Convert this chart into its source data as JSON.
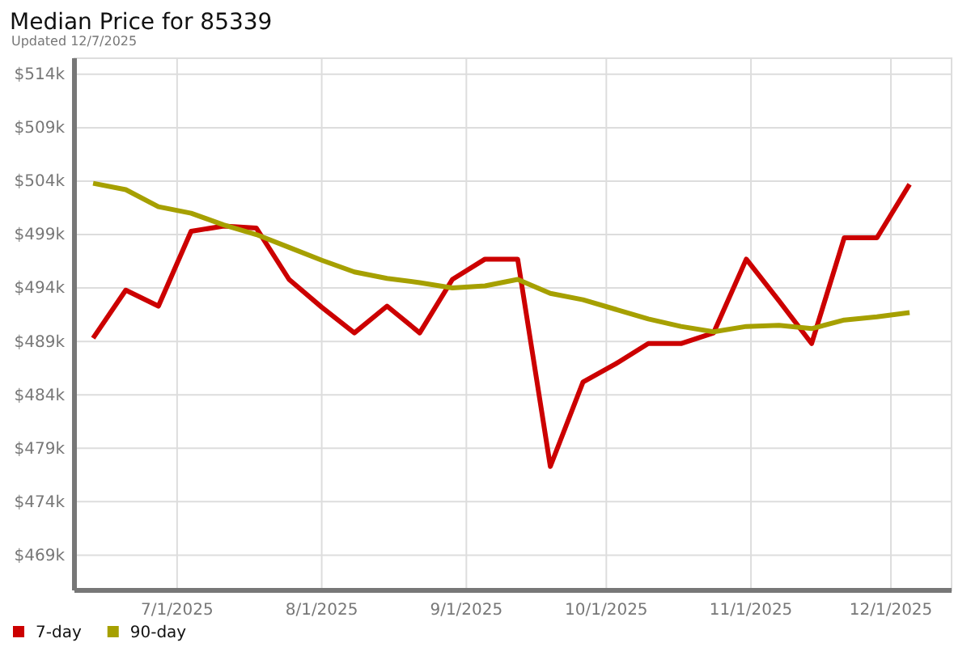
{
  "chart_data": {
    "type": "line",
    "title": "Median Price for 85339",
    "subtitle": "Updated 12/7/2025",
    "x": [
      "2025-06-13",
      "2025-06-20",
      "2025-06-27",
      "2025-07-04",
      "2025-07-11",
      "2025-07-18",
      "2025-07-25",
      "2025-08-01",
      "2025-08-08",
      "2025-08-15",
      "2025-08-22",
      "2025-08-29",
      "2025-09-05",
      "2025-09-12",
      "2025-09-19",
      "2025-09-26",
      "2025-10-03",
      "2025-10-10",
      "2025-10-17",
      "2025-10-24",
      "2025-10-31",
      "2025-11-07",
      "2025-11-14",
      "2025-11-21",
      "2025-11-28",
      "2025-12-05"
    ],
    "series": [
      {
        "name": "7-day",
        "color": "#cc0000",
        "values": [
          489.3,
          493.8,
          492.3,
          499.3,
          499.8,
          499.6,
          494.8,
          492.2,
          489.8,
          492.3,
          489.8,
          494.8,
          496.7,
          496.7,
          477.3,
          485.2,
          486.9,
          488.8,
          488.8,
          489.8,
          496.7,
          492.8,
          488.8,
          498.7,
          498.7,
          503.7
        ]
      },
      {
        "name": "90-day",
        "color": "#a6a000",
        "values": [
          503.8,
          503.2,
          501.6,
          501.0,
          499.9,
          499.0,
          497.8,
          496.6,
          495.5,
          494.9,
          494.5,
          494.0,
          494.2,
          494.8,
          493.5,
          492.9,
          492.0,
          491.1,
          490.4,
          489.9,
          490.4,
          490.5,
          490.2,
          491.0,
          491.3,
          491.7
        ]
      }
    ],
    "xlim": [
      "2025-06-09",
      "2025-12-14"
    ],
    "xticks": [
      {
        "value": "2025-07-01",
        "label": "7/1/2025"
      },
      {
        "value": "2025-08-01",
        "label": "8/1/2025"
      },
      {
        "value": "2025-09-01",
        "label": "9/1/2025"
      },
      {
        "value": "2025-10-01",
        "label": "10/1/2025"
      },
      {
        "value": "2025-11-01",
        "label": "11/1/2025"
      },
      {
        "value": "2025-12-01",
        "label": "12/1/2025"
      }
    ],
    "ylim": [
      465.7,
      515.5
    ],
    "yticks": [
      {
        "value": 469,
        "label": "$469k"
      },
      {
        "value": 474,
        "label": "$474k"
      },
      {
        "value": 479,
        "label": "$479k"
      },
      {
        "value": 484,
        "label": "$484k"
      },
      {
        "value": 489,
        "label": "$489k"
      },
      {
        "value": 494,
        "label": "$494k"
      },
      {
        "value": 499,
        "label": "$499k"
      },
      {
        "value": 504,
        "label": "$504k"
      },
      {
        "value": 509,
        "label": "$509k"
      },
      {
        "value": 514,
        "label": "$514k"
      }
    ],
    "grid": true,
    "legend": "bottom left",
    "marker": "none",
    "line_style": "solid"
  }
}
